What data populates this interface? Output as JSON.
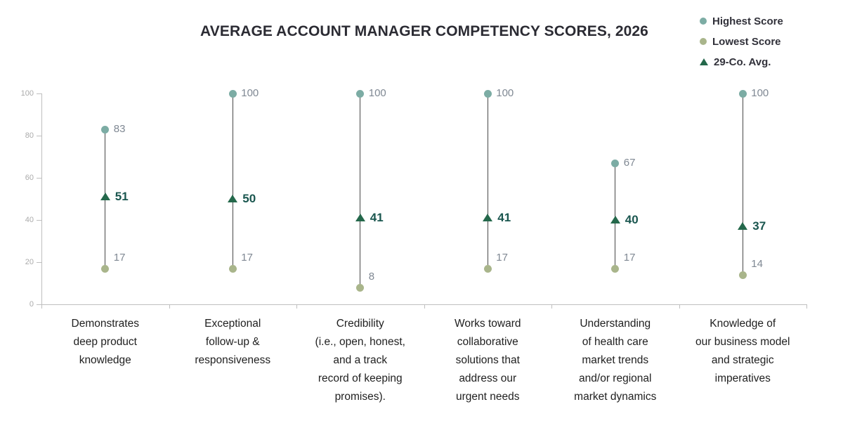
{
  "chart_data": {
    "type": "scatter",
    "subtype": "range-dot-plot",
    "title": "AVERAGE ACCOUNT MANAGER COMPETENCY SCORES, 2026",
    "categories": [
      "Demonstrates\ndeep product\nknowledge",
      "Exceptional\nfollow-up &\nresponsiveness",
      "Credibility\n(i.e., open, honest,\nand a track\nrecord of keeping\npromises).",
      "Works toward\ncollaborative\nsolutions that\naddress our\nurgent needs",
      "Understanding\nof health care\nmarket trends\nand/or regional\nmarket dynamics",
      "Knowledge of\nour business model\nand strategic\nimperatives"
    ],
    "series": [
      {
        "name": "Highest Score",
        "marker": "circle",
        "color": "#7caca4",
        "values": [
          83,
          100,
          100,
          100,
          67,
          100
        ]
      },
      {
        "name": "Lowest Score",
        "marker": "circle",
        "color": "#a9b58b",
        "values": [
          17,
          17,
          8,
          17,
          17,
          14
        ]
      },
      {
        "name": "29-Co. Avg.",
        "marker": "triangle",
        "color": "#24684b",
        "values": [
          51,
          50,
          41,
          41,
          40,
          37
        ]
      }
    ],
    "ylim": [
      0,
      100
    ],
    "yticks": [
      0,
      20,
      40,
      60,
      80,
      100
    ],
    "grid": false,
    "legend_position": "top-right",
    "connector_lines": true
  },
  "colors": {
    "axis": "#bfbfbf",
    "tick_label": "#ababab",
    "value_label": "#7f8893",
    "avg_label": "#1a564f",
    "connector": "#474747",
    "title_text": "#2b2b33"
  }
}
